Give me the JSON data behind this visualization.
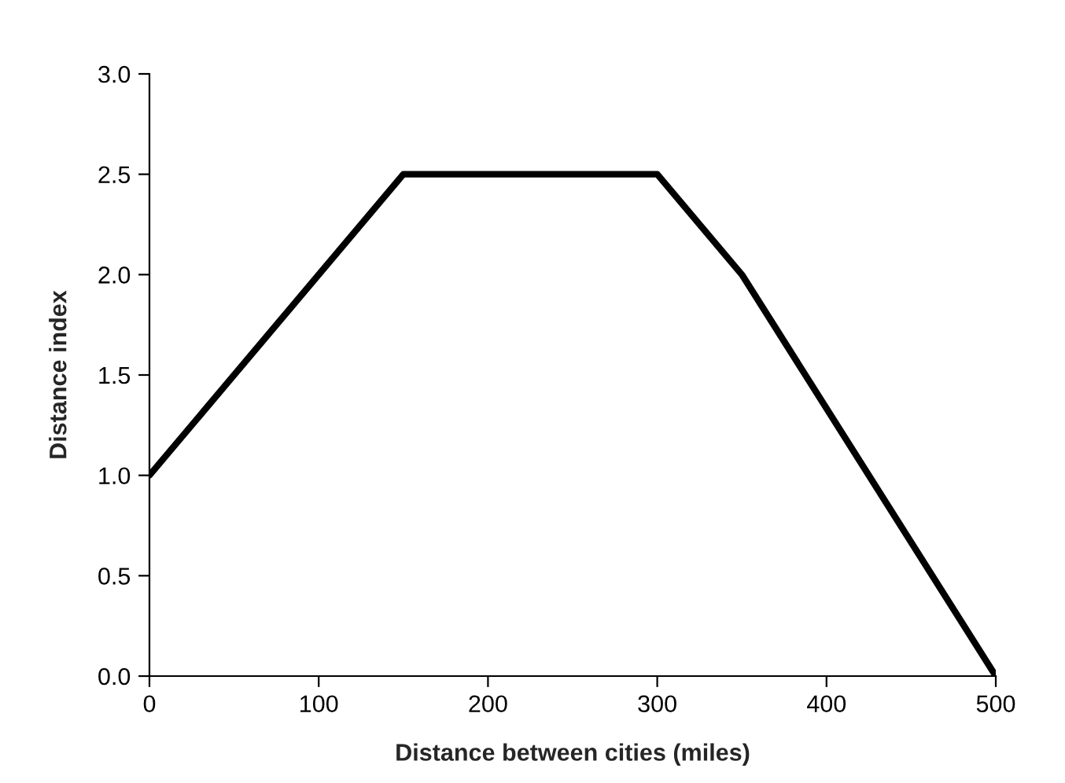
{
  "chart_data": {
    "type": "line",
    "xlabel": "Distance between cities (miles)",
    "ylabel": "Distance index",
    "x": [
      0,
      150,
      300,
      350,
      500
    ],
    "series": [
      {
        "color": "#000000",
        "values": [
          1.0,
          2.5,
          2.5,
          2.0,
          0.0
        ]
      }
    ],
    "xlim": [
      0,
      500
    ],
    "xticks": [
      0,
      100,
      200,
      300,
      400,
      500
    ],
    "ylim": [
      0,
      3
    ],
    "yticks": [
      {
        "value": 0,
        "label": "0.0"
      },
      {
        "value": 0.5,
        "label": "0.5"
      },
      {
        "value": 1,
        "label": "1.0"
      },
      {
        "value": 1.5,
        "label": "1.5"
      },
      {
        "value": 2,
        "label": "2.0"
      },
      {
        "value": 2.5,
        "label": "2.5"
      },
      {
        "value": 3,
        "label": "3.0"
      }
    ],
    "grid": false,
    "legend": false,
    "marker": "none",
    "line_style": "solid"
  }
}
